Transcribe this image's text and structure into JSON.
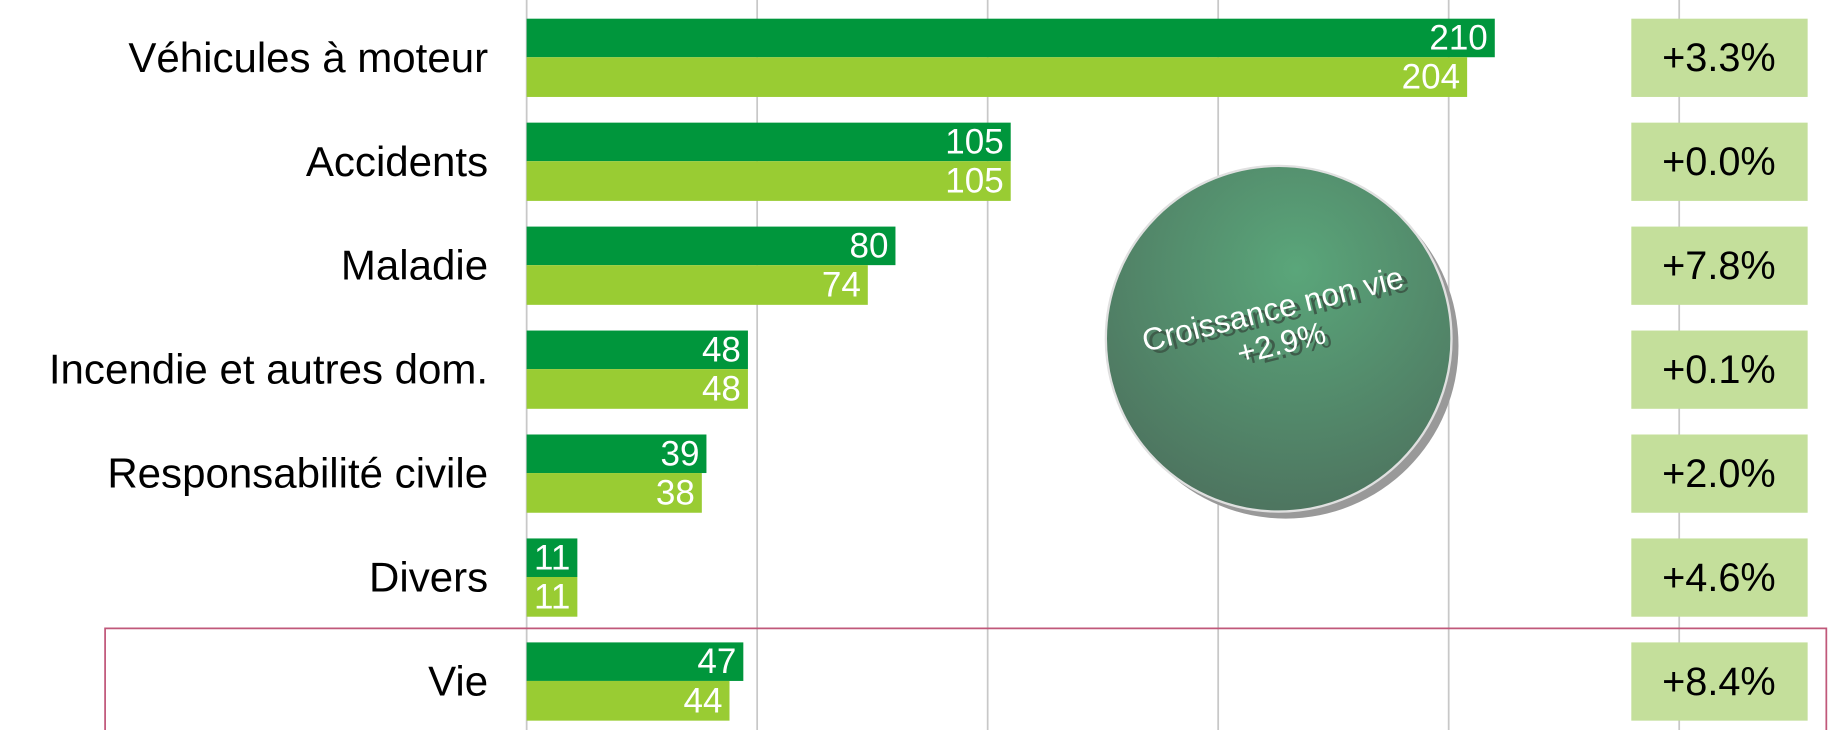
{
  "chart_data": {
    "type": "bar",
    "orientation": "horizontal",
    "categories": [
      "Véhicules à moteur",
      "Accidents",
      "Maladie",
      "Incendie et autres dom.",
      "Responsabilité civile",
      "Divers",
      "Vie"
    ],
    "series": [
      {
        "color": "#00963c",
        "values": [
          210,
          105,
          80,
          48,
          39,
          11,
          47
        ]
      },
      {
        "color": "#99cc33",
        "values": [
          204,
          105,
          74,
          48,
          38,
          11,
          44
        ]
      }
    ],
    "growth_labels": [
      "+3.3%",
      "+0.0%",
      "+7.8%",
      "+0.1%",
      "+2.0%",
      "+4.6%",
      "+8.4%"
    ],
    "xlim": [
      0,
      250
    ],
    "xticks": [
      0,
      50,
      100,
      150,
      200,
      250
    ],
    "grid": true,
    "annotation": {
      "title": "Croissance non vie",
      "value": "+2.9%"
    }
  }
}
